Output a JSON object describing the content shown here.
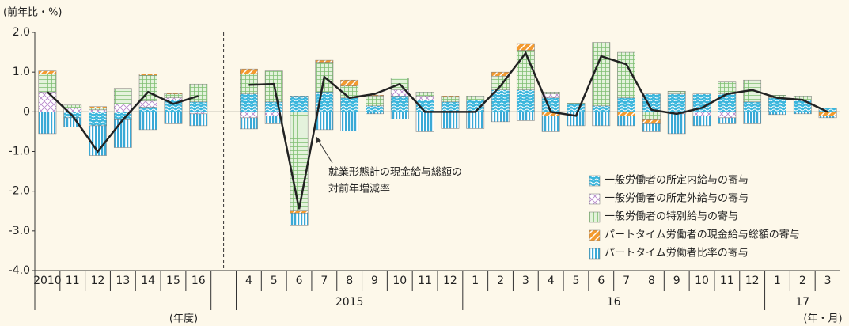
{
  "chart_data": {
    "type": "stacked-bar-line",
    "y_axis_label": "(前年比・%)",
    "ylim": [
      -4.0,
      2.0
    ],
    "yticks": [
      {
        "value": -4.0,
        "label": "-4.0"
      },
      {
        "value": -3.0,
        "label": "-3.0"
      },
      {
        "value": -2.0,
        "label": "-2.0"
      },
      {
        "value": -1.0,
        "label": "-1.0"
      },
      0,
      {
        "value": 1.0,
        "label": "1.0"
      },
      {
        "value": 2.0,
        "label": "2.0"
      }
    ],
    "categories": [
      "2010",
      "11",
      "12",
      "13",
      "14",
      "15",
      "16",
      null,
      "4",
      "5",
      "6",
      "7",
      "8",
      "9",
      "10",
      "11",
      "12",
      "1",
      "2",
      "3",
      "4",
      "5",
      "6",
      "7",
      "8",
      "9",
      "10",
      "11",
      "12",
      "1",
      "2",
      "3"
    ],
    "year_groups": [
      "2015",
      "16",
      "17"
    ],
    "x_unit_annual": "(年度)",
    "x_unit_monthly": "(年・月)",
    "legend_position": "lower right",
    "series": [
      {
        "name": "一般労働者の所定内給与の寄与",
        "color": "#3bb6dc",
        "pattern": "wave",
        "values": [
          0.0,
          -0.15,
          -0.35,
          -0.2,
          0.12,
          0.3,
          0.25,
          null,
          0.45,
          0.25,
          0.4,
          0.5,
          0.35,
          0.15,
          0.4,
          0.3,
          0.25,
          0.3,
          0.55,
          0.55,
          0.35,
          0.2,
          0.15,
          0.35,
          0.45,
          0.45,
          0.45,
          0.45,
          0.25,
          0.35,
          0.3,
          0.1
        ]
      },
      {
        "name": "一般労働者の所定外給与の寄与",
        "color": "#b583c9",
        "pattern": "cross",
        "values": [
          0.5,
          0.1,
          0.05,
          0.2,
          0.15,
          0.05,
          -0.05,
          null,
          -0.15,
          -0.1,
          0.0,
          0.0,
          0.0,
          0.0,
          0.15,
          0.1,
          0.0,
          0.0,
          0.0,
          0.0,
          0.1,
          0.0,
          0.0,
          0.0,
          0.0,
          -0.05,
          -0.1,
          -0.15,
          0.0,
          0.0,
          0.0,
          0.0
        ]
      },
      {
        "name": "一般労働者の特別給与の寄与",
        "color": "#7fbf72",
        "pattern": "grid",
        "values": [
          0.45,
          0.07,
          0.05,
          0.37,
          0.65,
          0.1,
          0.45,
          null,
          0.5,
          0.78,
          -2.5,
          0.75,
          0.3,
          0.25,
          0.3,
          0.1,
          0.12,
          0.1,
          0.35,
          1.0,
          0.05,
          0.02,
          1.6,
          1.15,
          -0.2,
          0.07,
          0.0,
          0.3,
          0.55,
          0.07,
          0.1,
          0.0
        ]
      },
      {
        "name": "パートタイム労働者の現金給与総額の寄与",
        "color": "#f39a2f",
        "pattern": "diag",
        "values": [
          0.08,
          0.0,
          0.03,
          0.02,
          0.03,
          0.03,
          0.0,
          null,
          0.13,
          0.0,
          -0.05,
          0.05,
          0.15,
          0.02,
          0.0,
          0.0,
          0.03,
          0.0,
          0.1,
          0.17,
          -0.1,
          0.0,
          0.0,
          -0.1,
          -0.1,
          0.0,
          0.0,
          0.0,
          0.0,
          0.0,
          0.0,
          -0.1
        ]
      },
      {
        "name": "パートタイム労働者比率の寄与",
        "color": "#3aa9d6",
        "pattern": "vstripe",
        "values": [
          -0.55,
          -0.23,
          -0.75,
          -0.7,
          -0.45,
          -0.3,
          -0.3,
          null,
          -0.28,
          -0.2,
          -0.3,
          -0.45,
          -0.48,
          -0.05,
          -0.18,
          -0.5,
          -0.42,
          -0.42,
          -0.25,
          -0.22,
          -0.4,
          -0.35,
          -0.35,
          -0.25,
          -0.2,
          -0.5,
          -0.25,
          -0.15,
          -0.3,
          -0.07,
          -0.05,
          -0.05
        ]
      }
    ],
    "line": {
      "name_lines": [
        "就業形態計の現金給与総額の",
        "対前年増減率"
      ],
      "color": "#222222",
      "values": [
        0.5,
        -0.1,
        -1.0,
        -0.2,
        0.5,
        0.2,
        0.4,
        null,
        0.68,
        0.7,
        -2.45,
        0.88,
        0.35,
        0.45,
        0.7,
        0.0,
        0.0,
        0.0,
        0.65,
        1.48,
        0.0,
        -0.1,
        1.4,
        1.2,
        0.05,
        -0.05,
        0.1,
        0.45,
        0.55,
        0.35,
        0.3,
        0.0
      ]
    }
  }
}
